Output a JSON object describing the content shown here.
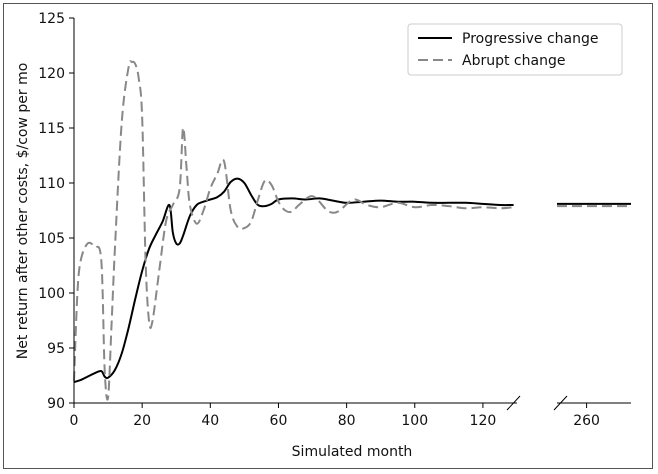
{
  "chart_data": {
    "type": "line",
    "title": "",
    "xlabel": "Simulated month",
    "ylabel": "Net return after other costs, $/cow per mo",
    "ylim": [
      90,
      125
    ],
    "yticks": [
      90,
      95,
      100,
      105,
      110,
      115,
      120,
      125
    ],
    "xlim_left": [
      0,
      130
    ],
    "xticks_left": [
      0,
      20,
      40,
      60,
      80,
      100,
      120
    ],
    "xlim_right": [
      250,
      275
    ],
    "xticks_right": [
      260
    ],
    "axis_break": true,
    "legend_position": "top-right",
    "series": [
      {
        "name": "Progressive change",
        "color": "#000000",
        "dash": "solid",
        "points": [
          [
            0,
            91.9
          ],
          [
            2,
            92.1
          ],
          [
            4,
            92.4
          ],
          [
            6,
            92.7
          ],
          [
            8,
            92.9
          ],
          [
            9,
            92.4
          ],
          [
            10,
            92.3
          ],
          [
            12,
            93.0
          ],
          [
            14,
            94.5
          ],
          [
            16,
            96.8
          ],
          [
            18,
            99.5
          ],
          [
            20,
            102.0
          ],
          [
            22,
            104.0
          ],
          [
            24,
            105.3
          ],
          [
            26,
            106.5
          ],
          [
            28,
            108.0
          ],
          [
            29,
            105.5
          ],
          [
            30,
            104.5
          ],
          [
            31,
            104.5
          ],
          [
            32,
            105.2
          ],
          [
            34,
            107.0
          ],
          [
            36,
            108.0
          ],
          [
            38,
            108.3
          ],
          [
            40,
            108.5
          ],
          [
            42,
            108.7
          ],
          [
            44,
            109.2
          ],
          [
            46,
            110.1
          ],
          [
            48,
            110.4
          ],
          [
            50,
            110.0
          ],
          [
            52,
            108.9
          ],
          [
            54,
            108.0
          ],
          [
            56,
            107.9
          ],
          [
            58,
            108.1
          ],
          [
            60,
            108.5
          ],
          [
            64,
            108.6
          ],
          [
            68,
            108.5
          ],
          [
            72,
            108.6
          ],
          [
            76,
            108.4
          ],
          [
            80,
            108.2
          ],
          [
            85,
            108.3
          ],
          [
            90,
            108.4
          ],
          [
            95,
            108.3
          ],
          [
            100,
            108.3
          ],
          [
            105,
            108.2
          ],
          [
            110,
            108.2
          ],
          [
            115,
            108.2
          ],
          [
            120,
            108.1
          ],
          [
            125,
            108.0
          ],
          [
            129,
            108.0
          ],
          [
            250,
            108.1
          ],
          [
            260,
            108.1
          ],
          [
            275,
            108.1
          ]
        ]
      },
      {
        "name": "Abrupt change",
        "color": "#888888",
        "dash": "dashed",
        "points": [
          [
            0,
            92.0
          ],
          [
            1,
            100.0
          ],
          [
            2,
            103.0
          ],
          [
            4,
            104.5
          ],
          [
            6,
            104.2
          ],
          [
            8,
            103.0
          ],
          [
            9,
            93.0
          ],
          [
            10,
            90.5
          ],
          [
            11,
            97.0
          ],
          [
            12,
            104.0
          ],
          [
            14,
            115.5
          ],
          [
            16,
            120.5
          ],
          [
            17,
            121.0
          ],
          [
            18,
            120.8
          ],
          [
            19,
            119.5
          ],
          [
            20,
            116.0
          ],
          [
            21,
            103.0
          ],
          [
            22,
            97.5
          ],
          [
            23,
            97.4
          ],
          [
            25,
            102.0
          ],
          [
            27,
            106.5
          ],
          [
            29,
            108.0
          ],
          [
            31,
            109.5
          ],
          [
            32,
            115.0
          ],
          [
            33,
            111.5
          ],
          [
            34,
            108.0
          ],
          [
            36,
            106.3
          ],
          [
            38,
            107.5
          ],
          [
            40,
            109.5
          ],
          [
            42,
            110.8
          ],
          [
            44,
            112.0
          ],
          [
            46,
            107.5
          ],
          [
            48,
            106.0
          ],
          [
            50,
            105.9
          ],
          [
            52,
            106.5
          ],
          [
            54,
            108.5
          ],
          [
            56,
            110.2
          ],
          [
            58,
            109.8
          ],
          [
            60,
            108.3
          ],
          [
            62,
            107.5
          ],
          [
            64,
            107.4
          ],
          [
            66,
            108.0
          ],
          [
            70,
            108.8
          ],
          [
            74,
            107.6
          ],
          [
            76,
            107.3
          ],
          [
            78,
            107.5
          ],
          [
            82,
            108.5
          ],
          [
            86,
            108.0
          ],
          [
            90,
            107.8
          ],
          [
            95,
            108.2
          ],
          [
            100,
            107.8
          ],
          [
            105,
            108.0
          ],
          [
            110,
            107.9
          ],
          [
            115,
            107.7
          ],
          [
            120,
            107.8
          ],
          [
            125,
            107.7
          ],
          [
            129,
            107.8
          ],
          [
            250,
            107.9
          ],
          [
            260,
            107.9
          ],
          [
            275,
            107.9
          ]
        ]
      }
    ]
  }
}
